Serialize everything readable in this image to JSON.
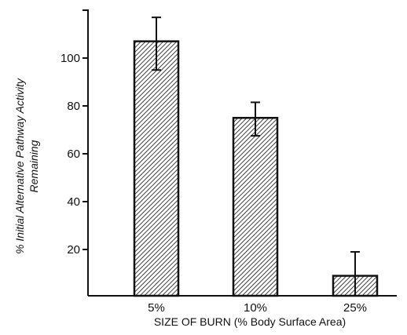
{
  "chart_data": {
    "type": "bar",
    "categories": [
      "5%",
      "10%",
      "25%"
    ],
    "values": [
      107,
      75,
      9
    ],
    "error_high": [
      117,
      81.5,
      19
    ],
    "error_low": [
      95,
      67.5,
      0
    ],
    "ylim": [
      0,
      118
    ],
    "yticks": [
      20,
      40,
      60,
      80,
      100
    ],
    "ytick_labels": [
      "20",
      "40",
      "60",
      "80",
      "100"
    ],
    "xlabel": "SIZE OF BURN  (% Body Surface Area)",
    "ylabel_line1": "% Initial Alternative Pathway Activity",
    "ylabel_line2": "Remaining",
    "title": "",
    "grid": false,
    "bar_fill": "hatched-diagonal",
    "colors": {
      "ink": "#111111",
      "background": "#ffffff"
    }
  }
}
